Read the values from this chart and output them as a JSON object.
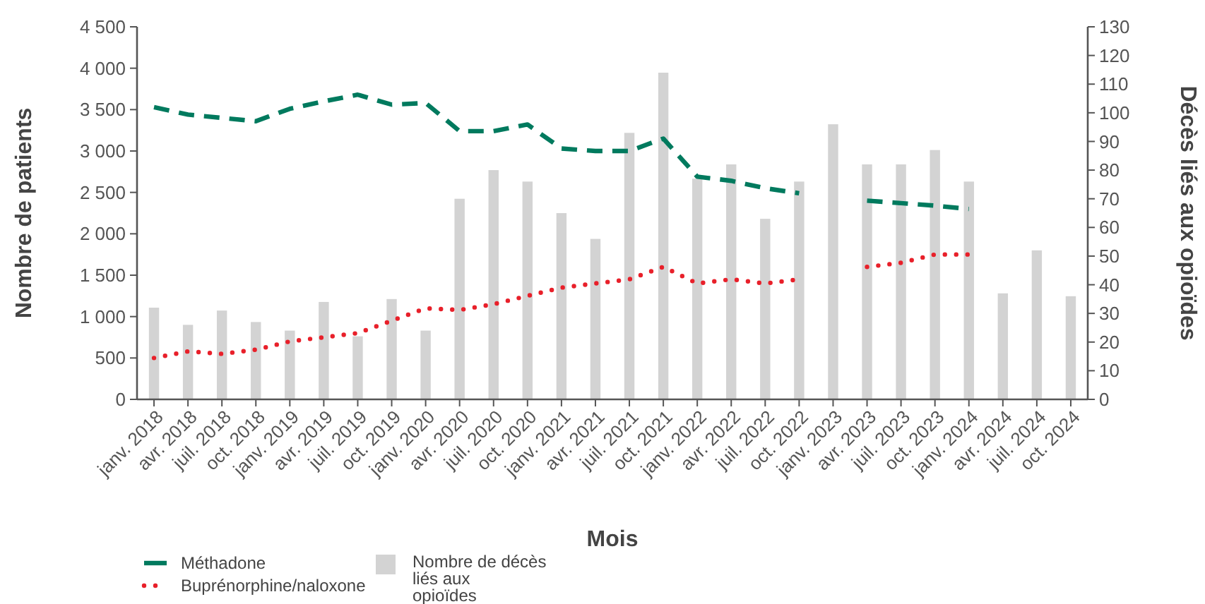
{
  "chart_data": {
    "type": "bar",
    "xlabel": "Mois",
    "ylabel": "Nombre de patients",
    "y2label": "Décès liés aux opioïdes",
    "categories": [
      "janv. 2018",
      "avr. 2018",
      "juil. 2018",
      "oct. 2018",
      "janv. 2019",
      "avr. 2019",
      "juil. 2019",
      "oct. 2019",
      "janv. 2020",
      "avr. 2020",
      "juil. 2020",
      "oct. 2020",
      "janv. 2021",
      "avr. 2021",
      "juil. 2021",
      "oct. 2021",
      "janv. 2022",
      "avr. 2022",
      "juil. 2022",
      "oct. 2022",
      "janv. 2023",
      "avr. 2023",
      "juil. 2023",
      "oct. 2023",
      "janv. 2024",
      "avr. 2024",
      "juil. 2024",
      "oct. 2024"
    ],
    "series": [
      {
        "name": "Méthadone",
        "type": "line",
        "line_style": "dashed",
        "color": "#007a5e",
        "values": [
          3530,
          3440,
          3400,
          3360,
          3510,
          3600,
          3680,
          3560,
          3580,
          3240,
          3240,
          3320,
          3030,
          3000,
          3000,
          3150,
          2690,
          2640,
          2550,
          2490,
          null,
          2400,
          2370,
          2340,
          2300,
          null,
          null,
          null
        ]
      },
      {
        "name": "Buprénorphine/naloxone",
        "type": "line",
        "line_style": "dotted",
        "color": "#e8202a",
        "values": [
          500,
          580,
          550,
          600,
          700,
          750,
          800,
          950,
          1100,
          1080,
          1150,
          1250,
          1350,
          1400,
          1450,
          1600,
          1400,
          1450,
          1400,
          1450,
          null,
          1600,
          1650,
          1750,
          1750,
          null,
          null,
          null
        ]
      },
      {
        "name": "Nombre de décès liés aux opioïdes",
        "axis": "y2",
        "color": "#d3d3d3",
        "values": [
          32,
          26,
          31,
          27,
          24,
          34,
          22,
          35,
          24,
          70,
          80,
          76,
          65,
          56,
          93,
          114,
          77,
          82,
          63,
          76,
          96,
          82,
          82,
          87,
          76,
          37,
          52,
          36
        ]
      }
    ],
    "ylim": [
      0,
      4500
    ],
    "yticks": [
      0,
      {
        "value": 500,
        "label": "500"
      },
      {
        "value": 1000,
        "label": "1 000"
      },
      {
        "value": 1500,
        "label": "1 500"
      },
      {
        "value": 2000,
        "label": "2 000"
      },
      {
        "value": 2500,
        "label": "2 500"
      },
      {
        "value": 3000,
        "label": "3 000"
      },
      {
        "value": 3500,
        "label": "3 500"
      },
      {
        "value": 4000,
        "label": "4 000"
      },
      {
        "value": 4500,
        "label": "4 500"
      }
    ],
    "y2lim": [
      0,
      130
    ],
    "y2ticks": [
      0,
      10,
      20,
      30,
      40,
      50,
      60,
      70,
      80,
      90,
      100,
      110,
      120,
      130
    ],
    "legend": "bottom",
    "grid": false
  }
}
